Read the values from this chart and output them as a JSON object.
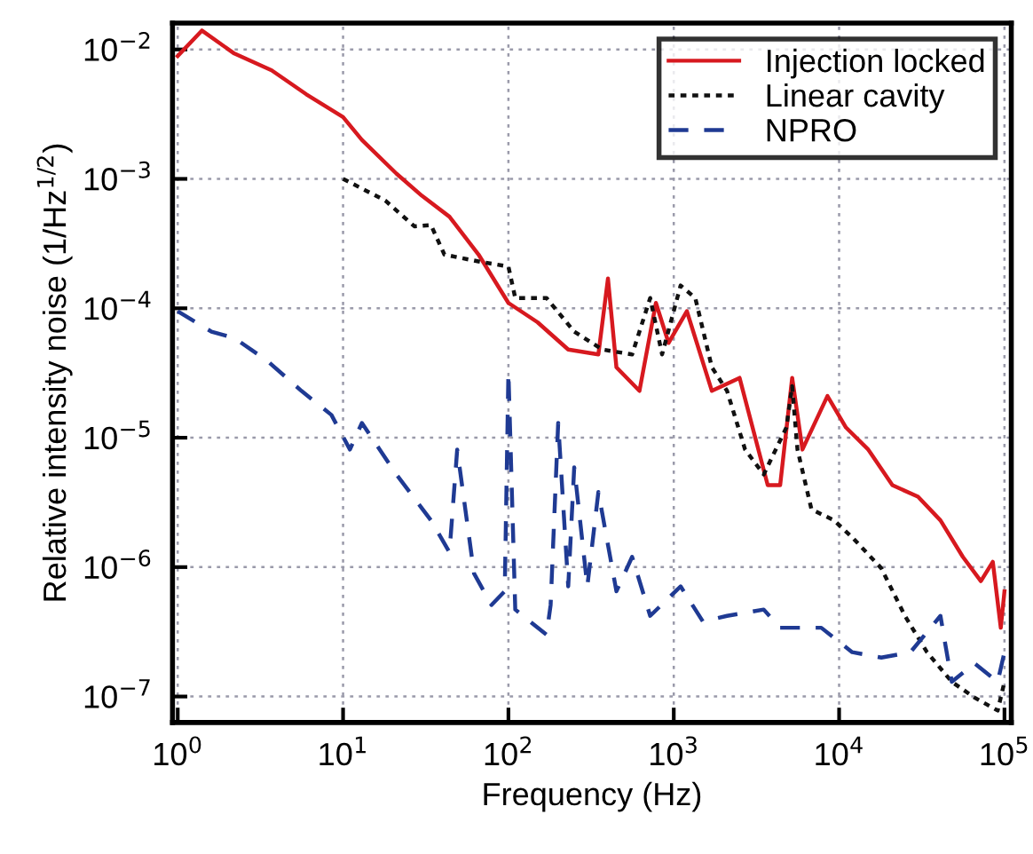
{
  "chart_data": {
    "type": "line",
    "xlabel": "Frequency (Hz)",
    "ylabel": "Relative intensity noise (1/Hz$^{1/2}$)",
    "log": "xy",
    "grid": true,
    "legend": "top right",
    "marker": "none",
    "xlim": [
      0.93,
      110000
    ],
    "ylim": [
      6.3e-08,
      0.016
    ],
    "xticks": [
      {
        "value": 1,
        "label": "10$^{0}$"
      },
      {
        "value": 10,
        "label": "10$^{1}$"
      },
      {
        "value": 100,
        "label": "10$^{2}$"
      },
      {
        "value": 1000,
        "label": "10$^{3}$"
      },
      {
        "value": 10000,
        "label": "10$^{4}$"
      },
      {
        "value": 100000,
        "label": "10$^{5}$"
      }
    ],
    "yticks": [
      {
        "value": 1e-07,
        "label": "10$^{−7}$"
      },
      {
        "value": 1e-06,
        "label": "10$^{−6}$"
      },
      {
        "value": 1e-05,
        "label": "10$^{−5}$"
      },
      {
        "value": 0.0001,
        "label": "10$^{−4}$"
      },
      {
        "value": 0.001,
        "label": "10$^{−3}$"
      },
      {
        "value": 0.01,
        "label": "10$^{−2}$"
      }
    ],
    "series": [
      {
        "name": "Injection locked",
        "color": "#d7191f",
        "line_style": "solid",
        "x": [
          1,
          1.4,
          2.2,
          3.7,
          6,
          10,
          13,
          21,
          30,
          44,
          66,
          100,
          150,
          230,
          350,
          400,
          450,
          620,
          780,
          930,
          1200,
          1700,
          2500,
          3700,
          4400,
          5200,
          6000,
          8500,
          11000,
          15000,
          21000,
          30000,
          41000,
          56000,
          72000,
          85000,
          95000,
          100000
        ],
        "values": [
          0.0089,
          0.014,
          0.0093,
          0.0069,
          0.0045,
          0.003,
          0.002,
          0.0011,
          0.00074,
          0.00051,
          0.00026,
          0.00011,
          7.8e-05,
          4.8e-05,
          4.4e-05,
          0.00017,
          3.5e-05,
          2.3e-05,
          0.00011,
          5.4e-05,
          9.5e-05,
          2.3e-05,
          2.9e-05,
          4.3e-06,
          4.3e-06,
          2.9e-05,
          8.1e-06,
          2.1e-05,
          1.2e-05,
          8.1e-06,
          4.3e-06,
          3.5e-06,
          2.3e-06,
          1.2e-06,
          7.8e-07,
          1.1e-06,
          3.4e-07,
          6.5e-07
        ]
      },
      {
        "name": "Linear cavity",
        "color": "#111111",
        "line_style": "dotted",
        "x": [
          10,
          18,
          27,
          34,
          41,
          66,
          100,
          110,
          170,
          250,
          370,
          560,
          720,
          850,
          1100,
          1350,
          1700,
          2100,
          2700,
          3500,
          4800,
          5200,
          5600,
          6800,
          9300,
          12000,
          18000,
          25000,
          34000,
          48000,
          66000,
          91000,
          100000
        ],
        "values": [
          0.001,
          0.00068,
          0.00043,
          0.00044,
          0.00026,
          0.00023,
          0.00021,
          0.00012,
          0.00012,
          6.6e-05,
          4.8e-05,
          4.4e-05,
          0.00012,
          4.4e-05,
          0.00015,
          0.00012,
          3.5e-05,
          2.3e-05,
          8.1e-06,
          5.2e-06,
          1.2e-05,
          2.5e-05,
          8.1e-06,
          2.8e-06,
          2.3e-06,
          1.7e-06,
          9.8e-07,
          4.2e-07,
          2.2e-07,
          1.3e-07,
          9.8e-08,
          7.8e-08,
          1.3e-07
        ]
      },
      {
        "name": "NPRO",
        "color": "#1f3a93",
        "line_style": "dashed",
        "x": [
          1,
          1.6,
          2.2,
          3.5,
          5.6,
          8.5,
          11,
          13,
          21,
          34,
          44,
          49,
          62,
          79,
          95,
          100,
          110,
          170,
          180,
          200,
          230,
          250,
          300,
          350,
          450,
          560,
          720,
          1100,
          1500,
          2100,
          3500,
          4400,
          7800,
          12000,
          18000,
          27000,
          41000,
          48000,
          66000,
          91000,
          100000
        ],
        "values": [
          9.5e-05,
          6.6e-05,
          5.9e-05,
          3.9e-05,
          2.3e-05,
          1.5e-05,
          8.1e-06,
          1.3e-05,
          5.2e-06,
          2.3e-06,
          1.3e-06,
          8.1e-06,
          8.9e-07,
          5.1e-07,
          6.5e-07,
          3.2e-05,
          4.7e-07,
          3e-07,
          5.1e-07,
          1.3e-05,
          7.1e-07,
          5.9e-06,
          7.1e-07,
          3.8e-06,
          6.5e-07,
          1.2e-06,
          4.2e-07,
          7.1e-07,
          3.8e-07,
          4.2e-07,
          4.7e-07,
          3.4e-07,
          3.4e-07,
          2.2e-07,
          2e-07,
          2.2e-07,
          4.2e-07,
          1.3e-07,
          1.8e-07,
          1.3e-07,
          2.2e-07
        ]
      }
    ]
  }
}
